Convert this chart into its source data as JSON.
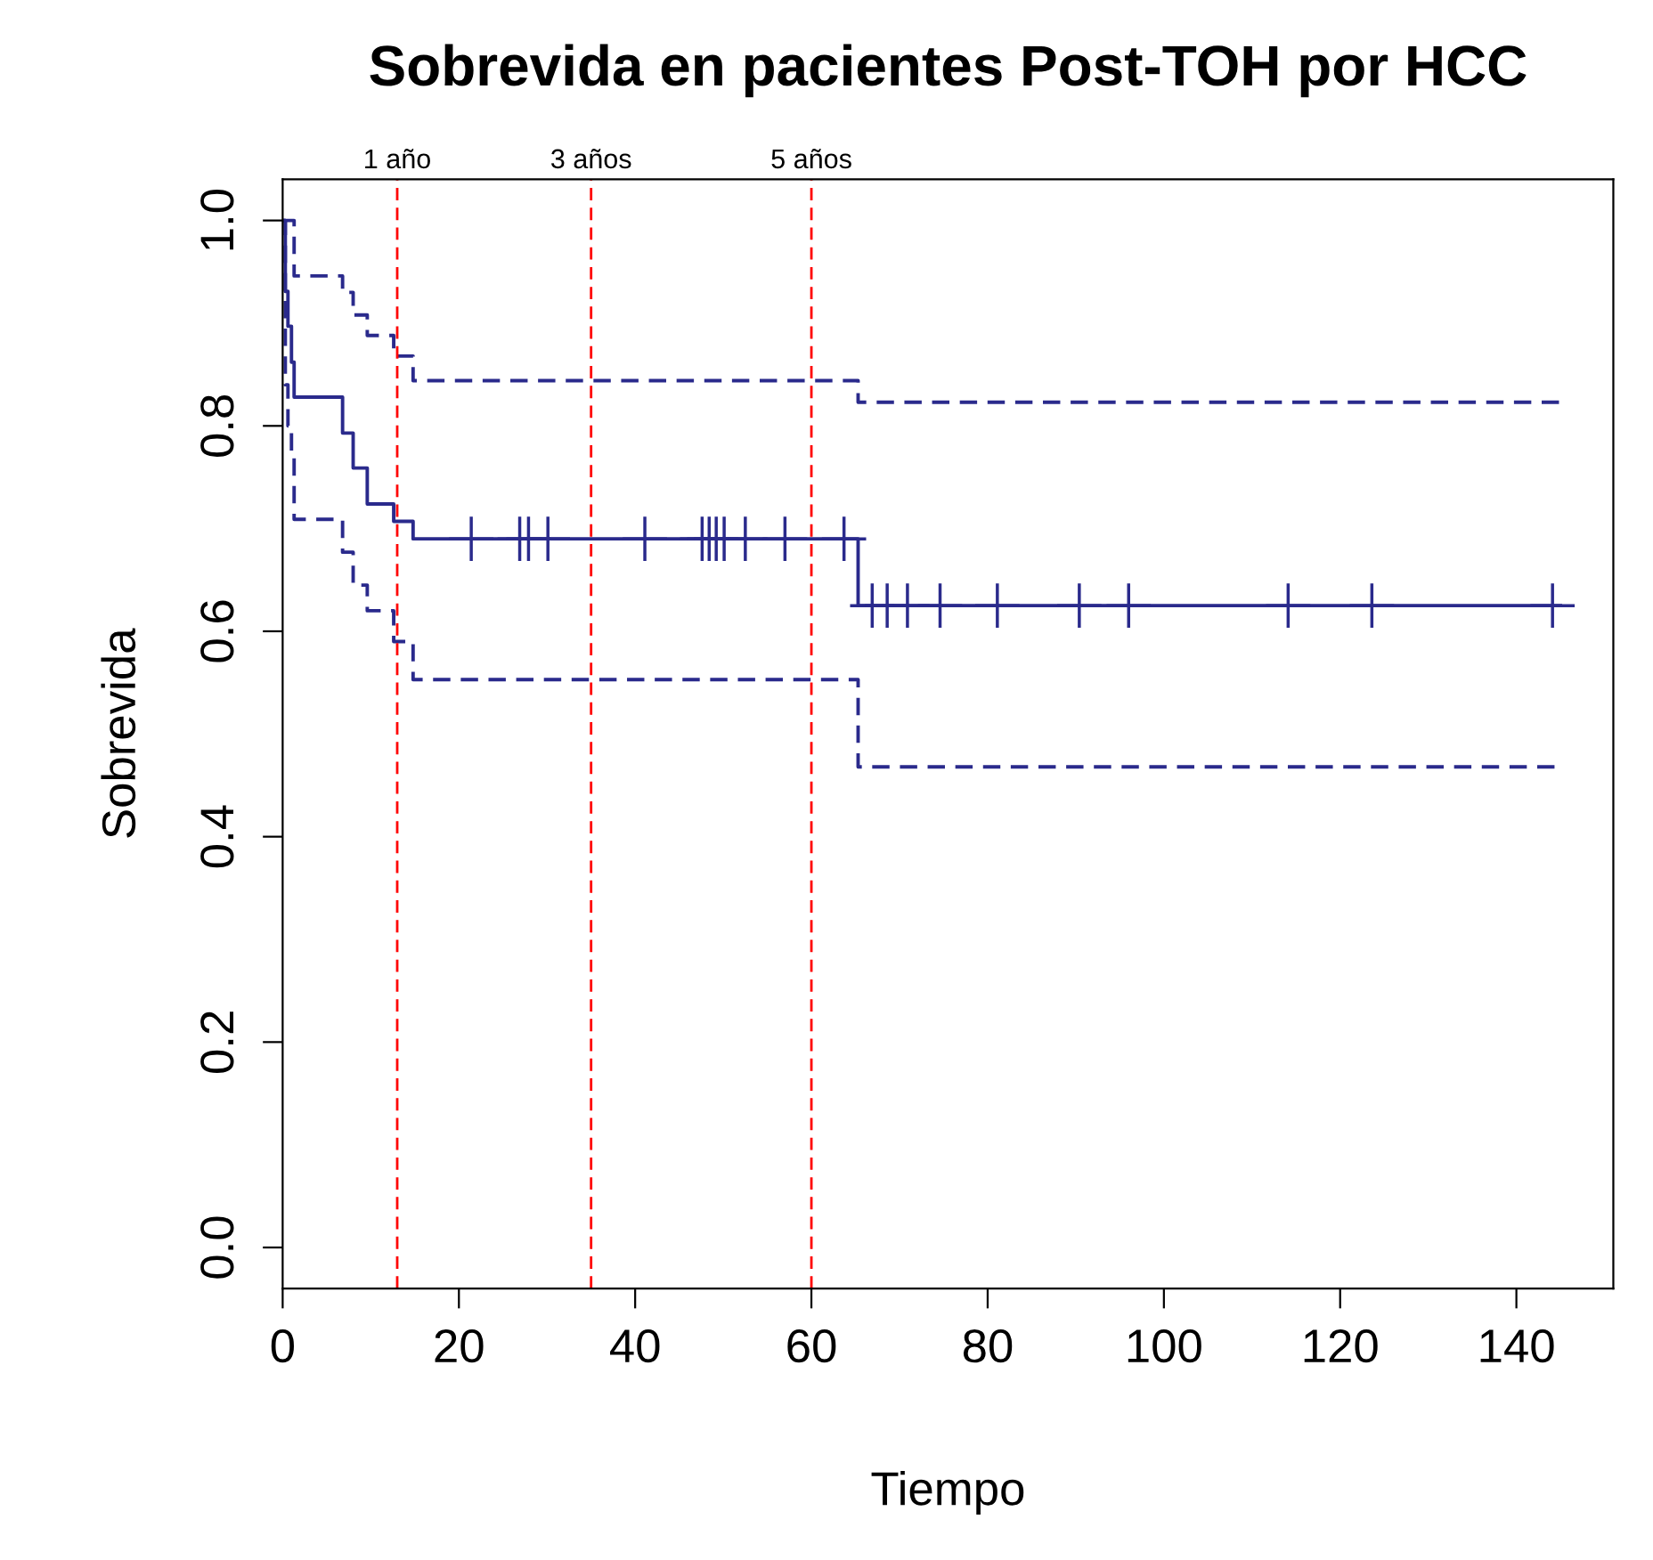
{
  "chart_data": {
    "type": "step",
    "title": "Sobrevida en pacientes Post-TOH por HCC",
    "xlabel": "Tiempo",
    "ylabel": "Sobrevida",
    "xlim": [
      0,
      151
    ],
    "ylim": [
      -0.04,
      1.04
    ],
    "xticks": [
      0,
      20,
      40,
      60,
      80,
      100,
      120,
      140
    ],
    "yticks": [
      {
        "value": 0,
        "label": "0.0"
      },
      {
        "value": 0.2,
        "label": "0.2"
      },
      {
        "value": 0.4,
        "label": "0.4"
      },
      {
        "value": 0.6,
        "label": "0.6"
      },
      {
        "value": 0.8,
        "label": "0.8"
      },
      {
        "value": 1,
        "label": "1.0"
      }
    ],
    "grid": false,
    "legend": false,
    "series": [
      {
        "line_style": "solid",
        "color": "#2a2a8c",
        "x": [
          0,
          0.3,
          0.6,
          1.0,
          1.3,
          6.8,
          8.0,
          9.6,
          12.6,
          14.8,
          65.3,
          145
        ],
        "values": [
          1.0,
          0.931,
          0.897,
          0.862,
          0.828,
          0.793,
          0.759,
          0.724,
          0.707,
          0.69,
          0.625,
          0.625
        ]
      },
      {
        "line_style": "dashed",
        "color": "#2a2a8c",
        "x": [
          0,
          1.3,
          6.8,
          8.0,
          9.6,
          12.6,
          14.8,
          65.3,
          145
        ],
        "values": [
          1.0,
          0.946,
          0.93,
          0.908,
          0.888,
          0.868,
          0.844,
          0.823,
          0.823
        ]
      },
      {
        "line_style": "dashed",
        "color": "#2a2a8c",
        "x": [
          0,
          0.3,
          0.6,
          1.0,
          1.3,
          6.8,
          8.0,
          9.6,
          12.6,
          14.8,
          65.3,
          145
        ],
        "values": [
          1.0,
          0.84,
          0.8,
          0.772,
          0.709,
          0.677,
          0.645,
          0.62,
          0.59,
          0.553,
          0.468,
          0.468
        ]
      },
      {
        "type": "scatter",
        "marker": "cross",
        "color": "#2a2a8c",
        "x": [
          21.4,
          26.9,
          27.9,
          30.1,
          41.1,
          47.6,
          48.4,
          49.2,
          50.1,
          52.5,
          57.0,
          63.7
        ],
        "values": [
          0.69,
          0.69,
          0.69,
          0.69,
          0.69,
          0.69,
          0.69,
          0.69,
          0.69,
          0.69,
          0.69,
          0.69
        ]
      },
      {
        "type": "scatter",
        "marker": "cross",
        "color": "#2a2a8c",
        "x": [
          66.9,
          68.6,
          70.9,
          74.6,
          81.1,
          90.4,
          96.0,
          114.1,
          123.6,
          144.1
        ],
        "values": [
          0.625,
          0.625,
          0.625,
          0.625,
          0.625,
          0.625,
          0.625,
          0.625,
          0.625,
          0.625
        ]
      }
    ],
    "ref_lines": [
      {
        "axis": "x",
        "value": 13,
        "label": "1 año",
        "color": "#ff0000",
        "line_style": "dashed"
      },
      {
        "axis": "x",
        "value": 35,
        "label": "3 años",
        "color": "#ff0000",
        "line_style": "dashed"
      },
      {
        "axis": "x",
        "value": 60,
        "label": "5 años",
        "color": "#ff0000",
        "line_style": "dashed"
      }
    ]
  }
}
